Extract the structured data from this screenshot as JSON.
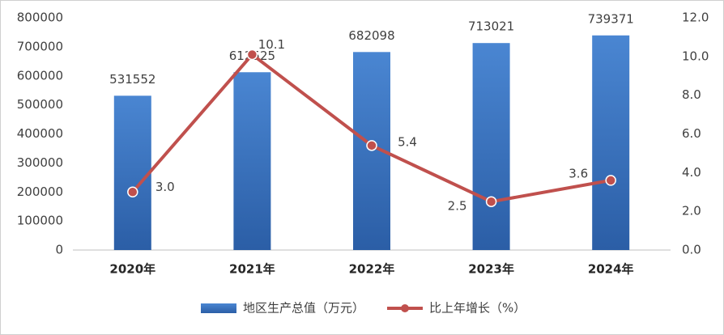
{
  "chart_data": {
    "type": "bar",
    "categories": [
      "2020年",
      "2021年",
      "2022年",
      "2023年",
      "2024年"
    ],
    "series": [
      {
        "name": "地区生产总值（万元）",
        "type": "bar",
        "color": "#3a74c2",
        "values": [
          531552,
          612525,
          682098,
          713021,
          739371
        ]
      },
      {
        "name": "比上年增长（%）",
        "type": "line",
        "axis": "y2",
        "color": "#c0504d",
        "values": [
          3.0,
          10.1,
          5.4,
          2.5,
          3.6
        ],
        "value_labels": [
          "3.0",
          "10.1",
          "5.4",
          "2.5",
          "3.6"
        ]
      }
    ],
    "ylim": [
      0,
      800000
    ],
    "yticks": [
      0,
      100000,
      200000,
      300000,
      400000,
      500000,
      600000,
      700000,
      800000
    ],
    "y2lim": [
      0,
      12
    ],
    "y2ticks": [
      {
        "value": 0,
        "label": "0.0"
      },
      {
        "value": 2,
        "label": "2.0"
      },
      {
        "value": 4,
        "label": "4.0"
      },
      {
        "value": 6,
        "label": "6.0"
      },
      {
        "value": 8,
        "label": "8.0"
      },
      {
        "value": 10,
        "label": "10.0"
      },
      {
        "value": 12,
        "label": "12.0"
      }
    ],
    "grid": false,
    "legend": "bottom"
  }
}
